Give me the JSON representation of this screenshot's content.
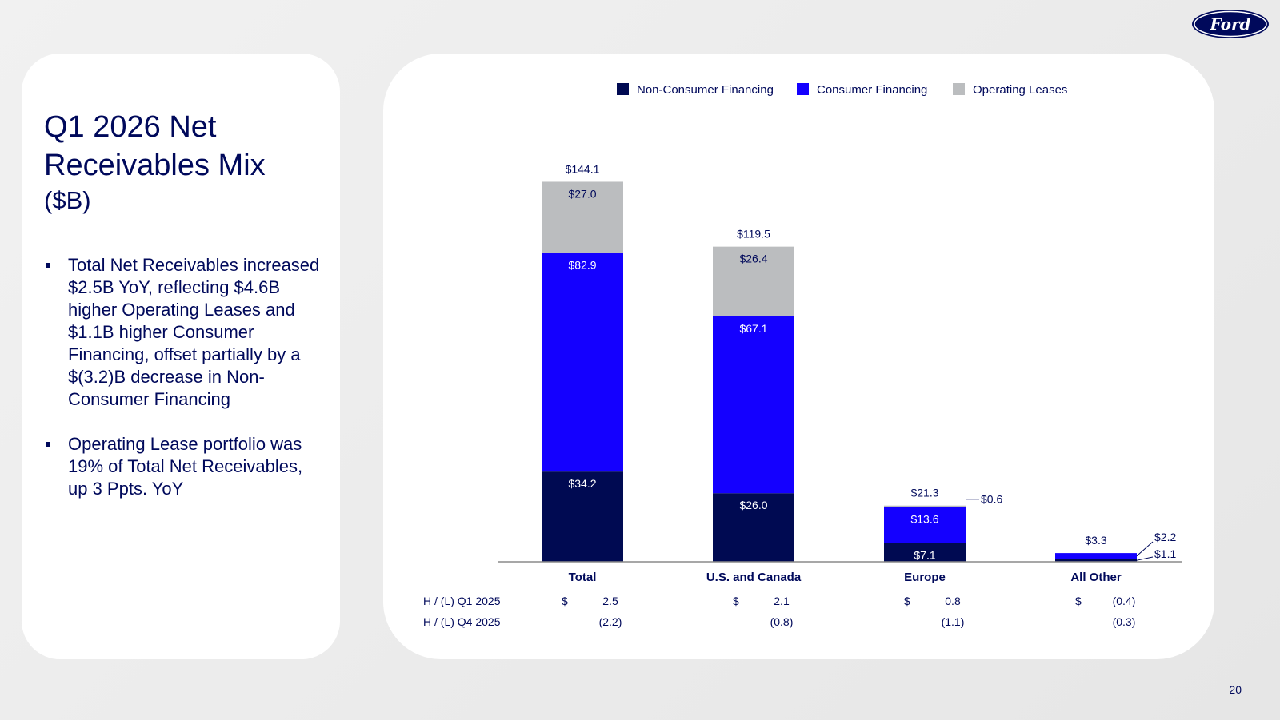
{
  "slide": {
    "title_line1": "Q1 2026 Net",
    "title_line2": "Receivables Mix",
    "title_unit": "($B)",
    "bullets": [
      "Total Net Receivables increased $2.5B YoY, reflecting $4.6B higher Operating Leases and $1.1B higher Consumer Financing, offset partially by a $(3.2)B decrease in Non-Consumer Financing",
      "Operating Lease portfolio was 19% of Total Net Receivables, up 3 Ppts. YoY"
    ],
    "page_number": "20",
    "logo_text": "Ford",
    "colors": {
      "navy": "#00095b",
      "non_consumer": "#000a52",
      "consumer": "#1400ff",
      "operating_leases": "#bbbdbf"
    }
  },
  "chart_data": {
    "type": "bar",
    "stacked": true,
    "title": "",
    "xlabel": "",
    "ylabel": "",
    "ylim": [
      0,
      150
    ],
    "grid": false,
    "legend_position": "top",
    "categories": [
      "Total",
      "U.S. and Canada",
      "Europe",
      "All Other"
    ],
    "series": [
      {
        "name": "Non-Consumer Financing",
        "color": "#000a52",
        "values": [
          34.2,
          26.0,
          7.1,
          1.1
        ],
        "labels": [
          "$34.2",
          "$26.0",
          "$7.1",
          "$1.1"
        ]
      },
      {
        "name": "Consumer Financing",
        "color": "#1400ff",
        "values": [
          82.9,
          67.1,
          13.6,
          2.2
        ],
        "labels": [
          "$82.9",
          "$67.1",
          "$13.6",
          "$2.2"
        ]
      },
      {
        "name": "Operating Leases",
        "color": "#bbbdbf",
        "values": [
          27.0,
          26.4,
          0.6,
          0.0
        ],
        "labels": [
          "$27.0",
          "$26.4",
          "$0.6",
          ""
        ]
      }
    ],
    "totals": [
      144.1,
      119.5,
      21.3,
      3.3
    ],
    "total_labels": [
      "$144.1",
      "$119.5",
      "$21.3",
      "$3.3"
    ],
    "comparison_rows": [
      {
        "label": "H / (L) Q1 2025",
        "prefix": "$",
        "values": [
          "2.5",
          "2.1",
          "0.8",
          "(0.4)"
        ]
      },
      {
        "label": "H / (L) Q4 2025",
        "prefix": "",
        "values": [
          "(2.2)",
          "(0.8)",
          "(1.1)",
          "(0.3)"
        ]
      }
    ]
  }
}
